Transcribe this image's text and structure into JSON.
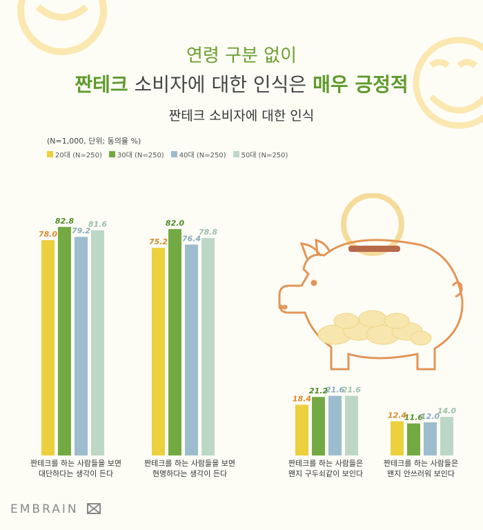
{
  "title_line1": "연령 구분 없이",
  "title_line2": {
    "bold1": "짠테크",
    "normal": " 소비자에 대한 인식은 ",
    "bold2": "매우 긍정적"
  },
  "subtitle": "짠테크 소비자에 대한 인식",
  "note": "(N=1,000, 단위; 동의율 %)",
  "logo": "EMBRAIN",
  "colors": {
    "20대": "#ecd03e",
    "30대": "#72a943",
    "40대": "#9dbccd",
    "50대": "#bdd7c6",
    "accent_green": "#5e9a2a"
  },
  "chart_data": {
    "type": "bar",
    "title": "짠테크 소비자에 대한 인식",
    "ylim": [
      0,
      100
    ],
    "categories": [
      "짠테크를 하는 사람들을 보면\n대단하다는 생각이 든다",
      "짠테크를 하는 사람들을 보면\n현명하다는 생각이 든다",
      "짠테크를 하는 사람들은\n왠지 구두쇠같이 보인다",
      "짠테크를 하는 사람들은\n왠지 안쓰러워 보인다"
    ],
    "series": [
      {
        "name": "20대 (N=250)",
        "values": [
          78.0,
          75.2,
          18.4,
          12.4
        ]
      },
      {
        "name": "30대 (N=250)",
        "values": [
          82.8,
          82.0,
          21.2,
          11.6
        ]
      },
      {
        "name": "40대 (N=250)",
        "values": [
          79.2,
          76.4,
          21.6,
          12.0
        ]
      },
      {
        "name": "50대 (N=250)",
        "values": [
          81.6,
          78.8,
          21.6,
          14.0
        ]
      }
    ],
    "label_colors": [
      "#d98a2b",
      "#4f8a24",
      "#8aaabd",
      "#9cc0a9"
    ]
  }
}
